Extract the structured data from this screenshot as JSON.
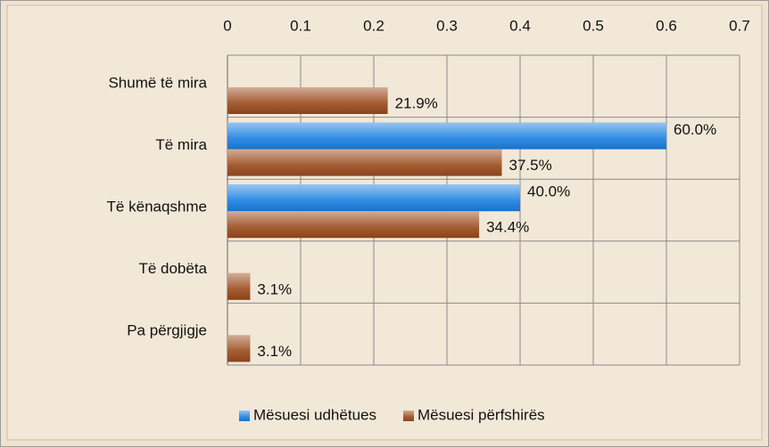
{
  "chart_data": {
    "type": "hbar",
    "categories": [
      "Shumë të mira",
      "Të mira",
      "Të kënaqshme",
      "Të dobëta",
      "Pa përgjigje"
    ],
    "series": [
      {
        "name": "Mësuesi udhëtues",
        "color": "#1a7fe0",
        "values": [
          null,
          0.6,
          0.4,
          null,
          null
        ],
        "value_labels": [
          null,
          "60.0%",
          "40.0%",
          null,
          null
        ]
      },
      {
        "name": "Mësuesi përfshirës",
        "color": "#9a4a1c",
        "values": [
          0.219,
          0.375,
          0.344,
          0.031,
          0.031
        ],
        "value_labels": [
          "21.9%",
          "37.5%",
          "34.4%",
          "3.1%",
          "3.1%"
        ]
      }
    ],
    "xlim": [
      0,
      0.7
    ],
    "xticks": [
      0,
      0.1,
      0.2,
      0.3,
      0.4,
      0.5,
      0.6,
      0.7
    ],
    "grid": true,
    "legend": "bottom"
  }
}
